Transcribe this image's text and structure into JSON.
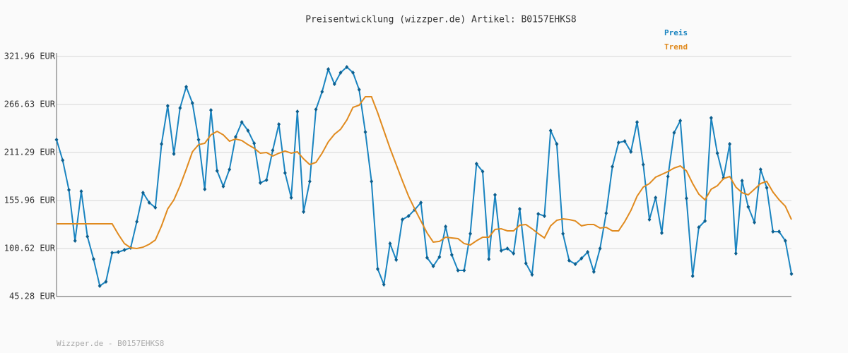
{
  "chart_data": {
    "type": "line",
    "title": "Preisentwicklung (wizzper.de) Artikel: B0157EHKS8",
    "footer": "Wizzper.de - B0157EHKS8",
    "ylim": [
      45.28,
      321.96
    ],
    "yticks": [
      {
        "value": 45.28,
        "label": "45.28 EUR"
      },
      {
        "value": 100.62,
        "label": "100.62 EUR"
      },
      {
        "value": 155.96,
        "label": "155.96 EUR"
      },
      {
        "value": 211.29,
        "label": "211.29 EUR"
      },
      {
        "value": 266.63,
        "label": "266.63 EUR"
      },
      {
        "value": 321.96,
        "label": "321.96 EUR"
      }
    ],
    "grid": true,
    "legend": "top-right",
    "series": [
      {
        "name": "Preis",
        "color": "#1a84c0",
        "markers": true,
        "values": [
          226.0,
          202.3,
          168.2,
          109.6,
          166.5,
          114.5,
          88.4,
          57.5,
          62.4,
          95.7,
          96.5,
          99.0,
          101.4,
          131.5,
          164.9,
          153.5,
          147.8,
          221.1,
          265.0,
          209.7,
          262.6,
          287.0,
          268.3,
          226.0,
          169.0,
          260.1,
          190.1,
          172.2,
          191.8,
          229.2,
          246.3,
          236.5,
          221.9,
          176.3,
          179.6,
          213.7,
          243.8,
          187.7,
          159.2,
          258.5,
          142.9,
          177.9,
          260.9,
          281.3,
          307.3,
          290.2,
          303.3,
          309.8,
          303.3,
          283.7,
          234.9,
          177.9,
          77.0,
          59.1,
          106.3,
          87.6,
          134.0,
          138.1,
          145.4,
          153.5,
          90.0,
          80.3,
          90.9,
          125.8,
          93.3,
          75.4,
          75.4,
          117.7,
          198.3,
          189.3,
          88.4,
          162.5,
          98.2,
          100.6,
          94.9,
          146.2,
          83.5,
          70.5,
          140.5,
          138.1,
          236.5,
          221.1,
          117.7,
          86.8,
          82.7,
          89.2,
          96.5,
          73.8,
          100.6,
          141.3,
          195.0,
          222.7,
          224.3,
          212.1,
          246.3,
          197.4,
          134.0,
          159.2,
          118.5,
          183.6,
          234.1,
          247.9,
          158.4,
          68.9,
          125.0,
          132.4,
          251.2,
          210.5,
          182.0,
          221.1,
          94.9,
          178.7,
          148.6,
          130.7,
          191.8,
          170.6,
          120.1,
          120.1,
          109.6,
          71.3
        ]
      },
      {
        "name": "Trend",
        "color": "#e08a1e",
        "markers": false,
        "values": [
          129.1,
          129.1,
          129.1,
          129.1,
          129.1,
          129.1,
          129.1,
          129.1,
          129.1,
          129.1,
          117.0,
          106.3,
          101.4,
          100.6,
          102.2,
          105.5,
          110.4,
          126.7,
          146.2,
          156.8,
          173.0,
          191.8,
          212.1,
          220.3,
          221.9,
          231.6,
          235.7,
          231.6,
          224.3,
          226.8,
          225.1,
          220.3,
          216.2,
          210.5,
          211.3,
          207.2,
          210.5,
          213.0,
          210.5,
          212.1,
          204.0,
          197.4,
          199.9,
          210.5,
          223.5,
          232.4,
          238.1,
          248.7,
          263.4,
          265.8,
          275.6,
          275.6,
          256.9,
          236.5,
          216.2,
          197.4,
          178.7,
          160.8,
          146.2,
          132.4,
          118.5,
          108.0,
          108.8,
          113.6,
          112.8,
          112.0,
          106.3,
          104.7,
          109.6,
          113.6,
          113.6,
          122.6,
          123.4,
          121.0,
          121.0,
          127.5,
          128.3,
          123.4,
          117.7,
          112.8,
          126.7,
          133.2,
          134.8,
          134.0,
          132.4,
          126.7,
          128.3,
          128.3,
          124.2,
          125.0,
          121.0,
          121.0,
          131.5,
          144.5,
          160.8,
          171.4,
          175.5,
          182.8,
          186.1,
          189.3,
          193.4,
          195.8,
          190.1,
          175.5,
          163.3,
          156.8,
          169.0,
          173.0,
          181.2,
          183.6,
          171.4,
          164.9,
          162.5,
          169.0,
          175.5,
          178.0,
          165.7,
          156.8,
          149.4,
          134.0
        ]
      }
    ]
  }
}
